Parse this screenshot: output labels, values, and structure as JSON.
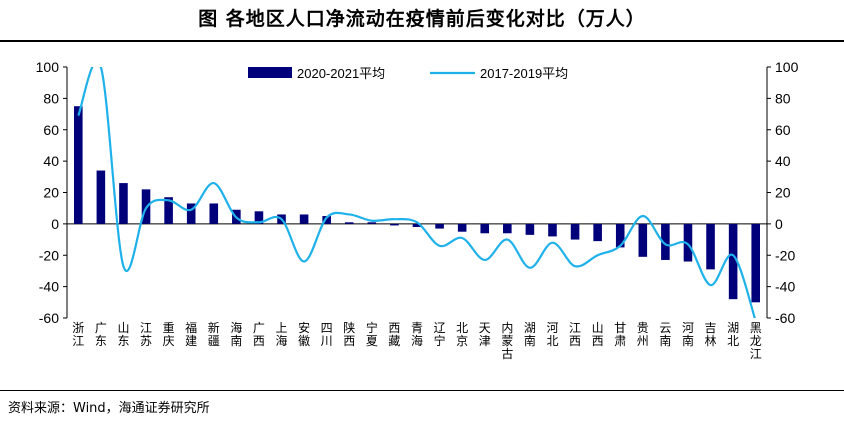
{
  "title": "图  各地区人口净流动在疫情前后变化对比（万人）",
  "source": "资料来源：Wind，海通证券研究所",
  "colors": {
    "bar": "#00007a",
    "line": "#1fb1ea",
    "axis": "#000000"
  },
  "chart_data": {
    "type": "bar",
    "categories": [
      "浙江",
      "广东",
      "山东",
      "江苏",
      "重庆",
      "福建",
      "新疆",
      "海南",
      "广西",
      "上海",
      "安徽",
      "四川",
      "陕西",
      "宁夏",
      "西藏",
      "青海",
      "辽宁",
      "北京",
      "天津",
      "内蒙古",
      "湖南",
      "河北",
      "江西",
      "山西",
      "甘肃",
      "贵州",
      "云南",
      "河南",
      "吉林",
      "湖北",
      "黑龙江"
    ],
    "series": [
      {
        "name": "2020-2021平均",
        "kind": "bar",
        "axis": "left",
        "values": [
          75,
          34,
          26,
          22,
          17,
          13,
          13,
          9,
          8,
          6,
          6,
          5,
          1,
          1,
          -1,
          -2,
          -3,
          -5,
          -6,
          -6,
          -7,
          -8,
          -10,
          -11,
          -15,
          -21,
          -23,
          -24,
          -29,
          -48,
          -50
        ]
      },
      {
        "name": "2017-2019平均",
        "kind": "line",
        "axis": "right",
        "values": [
          69,
          100,
          -27,
          10,
          15,
          9,
          26,
          4,
          1,
          3,
          -24,
          4,
          6,
          2,
          3,
          1,
          -14,
          -9,
          -23,
          -10,
          -28,
          -12,
          -27,
          -20,
          -14,
          5,
          -13,
          -13,
          -39,
          -20,
          -62
        ]
      }
    ],
    "yleft": {
      "min": -60,
      "max": 100,
      "ticks": [
        -60,
        -40,
        -20,
        0,
        20,
        40,
        60,
        80,
        100
      ]
    },
    "yright": {
      "min": -60,
      "max": 100,
      "ticks": [
        -60,
        -40,
        -20,
        0,
        20,
        40,
        60,
        80,
        100
      ]
    },
    "legend": "top"
  }
}
